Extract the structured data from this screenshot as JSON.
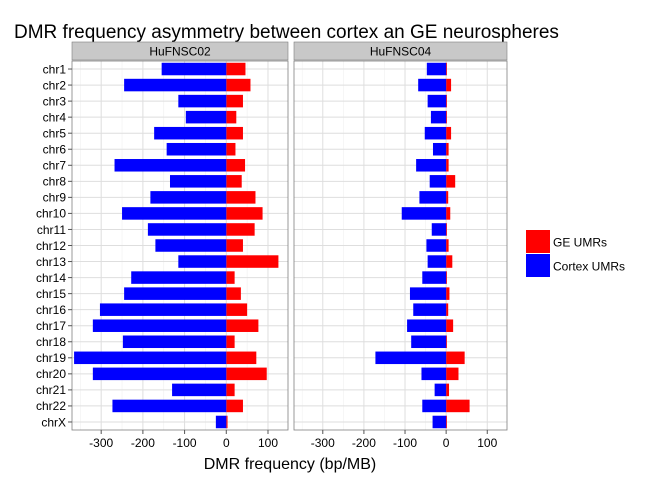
{
  "chart_data": {
    "type": "bar",
    "orientation": "horizontal",
    "stacked": "diverging",
    "title": "DMR frequency asymmetry between cortex an GE neurospheres",
    "xlabel": "DMR frequency (bp/MB)",
    "ylabel": "",
    "xlim": [
      -370,
      148
    ],
    "x_ticks": [
      -300,
      -200,
      -100,
      0,
      100
    ],
    "x_tick_labels": [
      "-300",
      "-200",
      "-100",
      "0",
      "100"
    ],
    "grid": true,
    "legend_position": "right",
    "categories": [
      "chr1",
      "chr2",
      "chr3",
      "chr4",
      "chr5",
      "chr6",
      "chr7",
      "chr8",
      "chr9",
      "chr10",
      "chr11",
      "chr12",
      "chr13",
      "chr14",
      "chr15",
      "chr16",
      "chr17",
      "chr18",
      "chr19",
      "chr20",
      "chr21",
      "chr22",
      "chrX"
    ],
    "legend": [
      {
        "label": "GE UMRs",
        "color": "#ff0000"
      },
      {
        "label": "Cortex UMRs",
        "color": "#0000ff"
      }
    ],
    "panels": [
      {
        "strip": "HuFNSC02",
        "series": [
          {
            "name": "GE UMRs",
            "color": "#ff0000",
            "values": [
              46,
              58,
              40,
              24,
              40,
              22,
              45,
              37,
              70,
              87,
              68,
              40,
              125,
              20,
              35,
              50,
              77,
              20,
              72,
              97,
              20,
              40,
              3
            ]
          },
          {
            "name": "Cortex UMRs",
            "color": "#0000ff",
            "values": [
              -155,
              -245,
              -115,
              -97,
              -173,
              -143,
              -268,
              -135,
              -182,
              -250,
              -188,
              -170,
              -115,
              -228,
              -245,
              -303,
              -320,
              -248,
              -365,
              -320,
              -130,
              -273,
              -25
            ]
          }
        ]
      },
      {
        "strip": "HuFNSC04",
        "series": [
          {
            "name": "GE UMRs",
            "color": "#ff0000",
            "values": [
              2,
              12,
              2,
              2,
              12,
              6,
              6,
              22,
              5,
              10,
              2,
              6,
              15,
              2,
              8,
              5,
              17,
              2,
              45,
              30,
              7,
              57,
              2
            ]
          },
          {
            "name": "Cortex UMRs",
            "color": "#0000ff",
            "values": [
              -47,
              -68,
              -45,
              -37,
              -52,
              -32,
              -73,
              -40,
              -65,
              -108,
              -35,
              -48,
              -45,
              -58,
              -88,
              -80,
              -95,
              -85,
              -172,
              -60,
              -28,
              -58,
              -33
            ]
          }
        ]
      }
    ]
  }
}
